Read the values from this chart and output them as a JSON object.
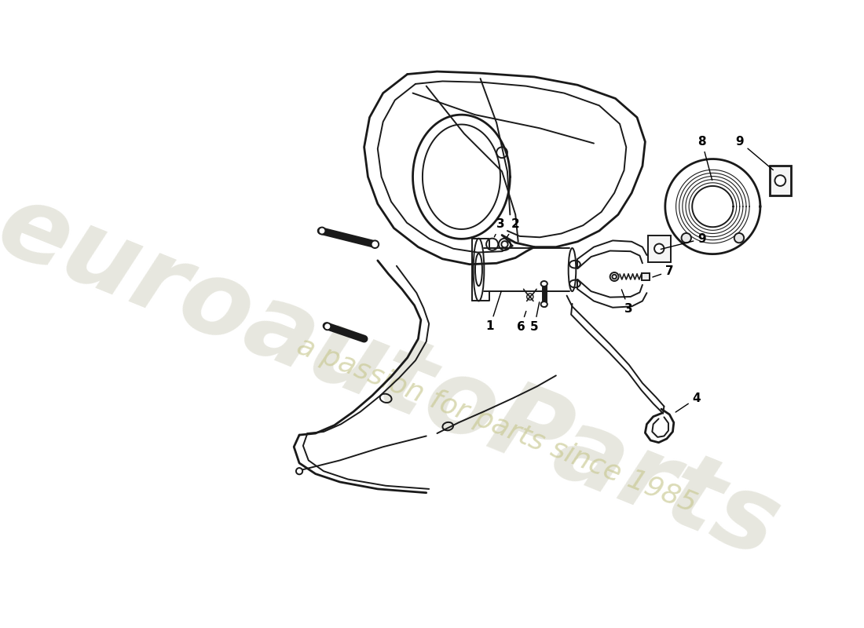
{
  "bg_color": "#ffffff",
  "lc": "#1a1a1a",
  "lw": 1.4,
  "lwt": 2.0,
  "wm1_color": "#d0d0c0",
  "wm1_alpha": 0.5,
  "wm2_color": "#c8c890",
  "wm2_alpha": 0.65,
  "label_fs": 11
}
